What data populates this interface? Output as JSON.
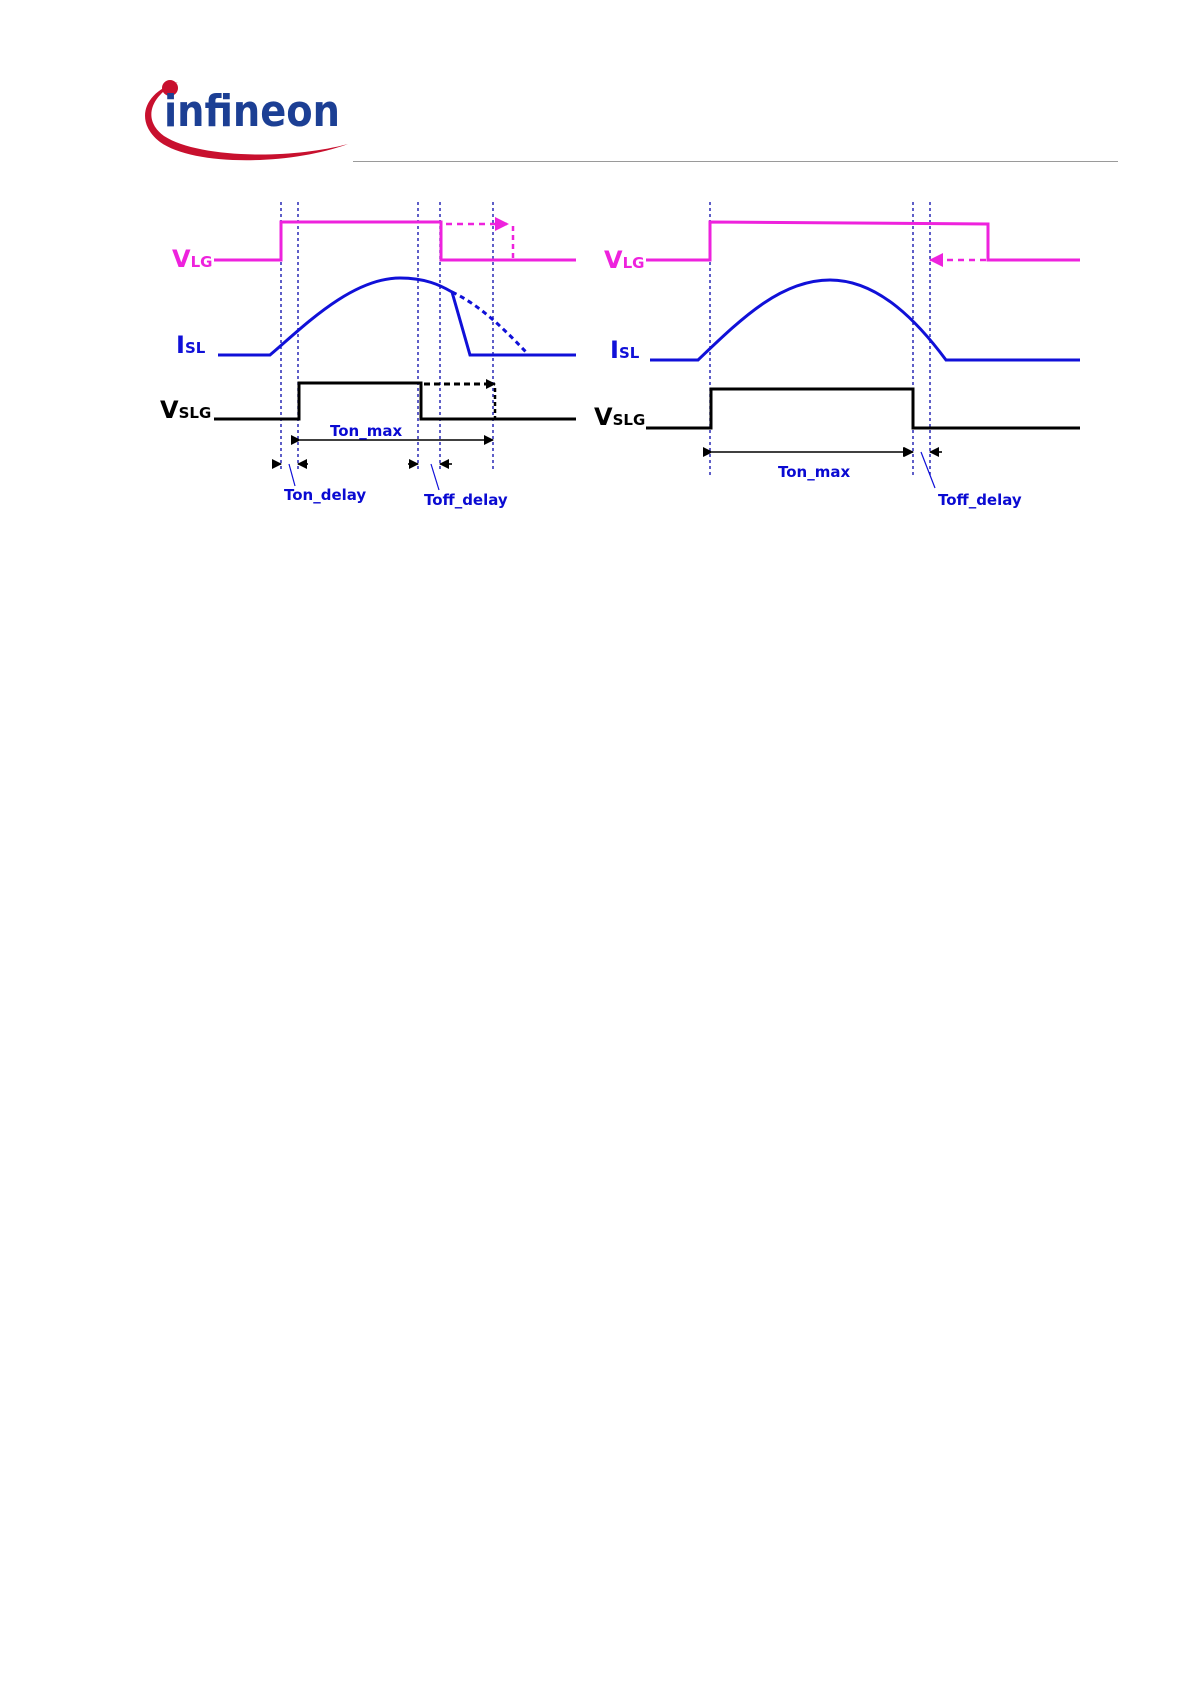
{
  "header": {
    "logo_text": "infineon",
    "logo_icon": "infineon-swoosh-logo"
  },
  "colors": {
    "gate_signal": "#ee22dd",
    "current": "#1010d8",
    "output": "#000000",
    "guide": "#1a1ab0",
    "logo_red": "#c8102e",
    "logo_blue": "#1c3f94"
  },
  "diagram": {
    "left": {
      "vlg": {
        "main": "V",
        "sub": "LG"
      },
      "isl": {
        "main": "I",
        "sub": "SL"
      },
      "vslg": {
        "main": "V",
        "sub": "SLG"
      },
      "ton_max": "Ton_max",
      "ton_delay": "Ton_delay",
      "toff_delay": "Toff_delay"
    },
    "right": {
      "vlg": {
        "main": "V",
        "sub": "LG"
      },
      "isl": {
        "main": "I",
        "sub": "SL"
      },
      "vslg": {
        "main": "V",
        "sub": "SLG"
      },
      "ton_max": "Ton_max",
      "toff_delay": "Toff_delay"
    }
  }
}
